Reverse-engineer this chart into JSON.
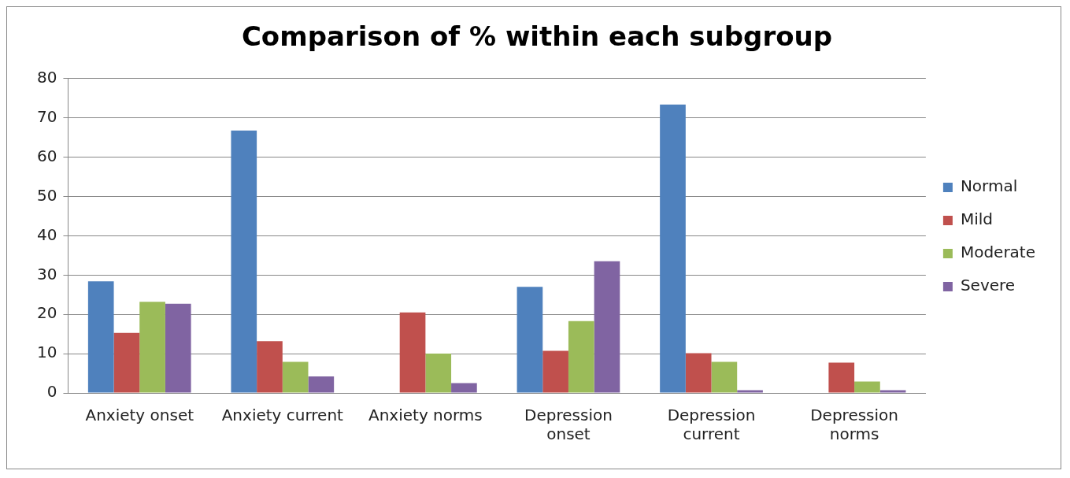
{
  "chart_data": {
    "type": "bar",
    "title": "Comparison of % within each subgroup",
    "categories": [
      "Anxiety onset",
      "Anxiety current",
      "Anxiety norms",
      "Depression onset",
      "Depression current",
      "Depression norms"
    ],
    "series": [
      {
        "name": "Normal",
        "color": "#4f81bd",
        "values": [
          28.4,
          66.8,
          0,
          27.0,
          73.4,
          0
        ]
      },
      {
        "name": "Mild",
        "color": "#c0504d",
        "values": [
          15.3,
          13.2,
          20.5,
          10.7,
          10.1,
          7.7
        ]
      },
      {
        "name": "Moderate",
        "color": "#9bbb59",
        "values": [
          23.2,
          7.9,
          10.0,
          18.3,
          7.9,
          2.9
        ]
      },
      {
        "name": "Severe",
        "color": "#8064a2",
        "values": [
          22.7,
          4.2,
          2.5,
          33.5,
          0.7,
          0.7
        ]
      }
    ],
    "ylim": [
      0,
      80
    ],
    "yticks": [
      0,
      10,
      20,
      30,
      40,
      50,
      60,
      70,
      80
    ],
    "grid": "y",
    "legend": "right"
  }
}
